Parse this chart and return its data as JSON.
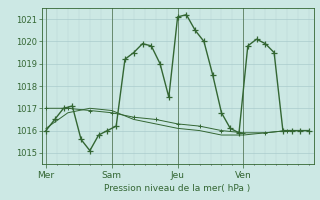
{
  "background_color": "#cce8e4",
  "grid_color": "#b8d8d4",
  "line_color": "#336633",
  "xlabel": "Pression niveau de la mer( hPa )",
  "ylim": [
    1014.5,
    1021.5
  ],
  "yticks": [
    1015,
    1016,
    1017,
    1018,
    1019,
    1020,
    1021
  ],
  "xtick_labels": [
    "Mer",
    "Sam",
    "Jeu",
    "Ven"
  ],
  "xtick_positions": [
    0,
    30,
    60,
    90
  ],
  "vline_positions": [
    0,
    30,
    60,
    90
  ],
  "series1_x": [
    0,
    4,
    8,
    12,
    16,
    20,
    24,
    28,
    32,
    36,
    40,
    44,
    48,
    52,
    56,
    60,
    64,
    68,
    72,
    76,
    80,
    84,
    88,
    92,
    96,
    100,
    104,
    108,
    112,
    116,
    120
  ],
  "series1_y": [
    1016.0,
    1016.5,
    1017.0,
    1017.1,
    1015.6,
    1015.1,
    1015.8,
    1016.0,
    1016.2,
    1019.2,
    1019.5,
    1019.9,
    1019.8,
    1019.0,
    1017.5,
    1021.1,
    1021.2,
    1020.5,
    1020.0,
    1018.5,
    1016.8,
    1016.1,
    1015.9,
    1019.8,
    1020.1,
    1019.9,
    1019.5,
    1016.0,
    1016.0,
    1016.0,
    1016.0
  ],
  "series2_x": [
    0,
    10,
    20,
    30,
    40,
    50,
    60,
    70,
    80,
    90,
    100,
    110,
    120
  ],
  "series2_y": [
    1017.0,
    1017.0,
    1016.9,
    1016.8,
    1016.6,
    1016.5,
    1016.3,
    1016.2,
    1016.0,
    1015.9,
    1015.9,
    1016.0,
    1016.0
  ],
  "series3_x": [
    0,
    10,
    20,
    30,
    40,
    50,
    60,
    70,
    80,
    90,
    100,
    110,
    120
  ],
  "series3_y": [
    1016.1,
    1016.8,
    1017.0,
    1016.9,
    1016.5,
    1016.3,
    1016.1,
    1016.0,
    1015.8,
    1015.8,
    1015.9,
    1016.0,
    1016.0
  ]
}
